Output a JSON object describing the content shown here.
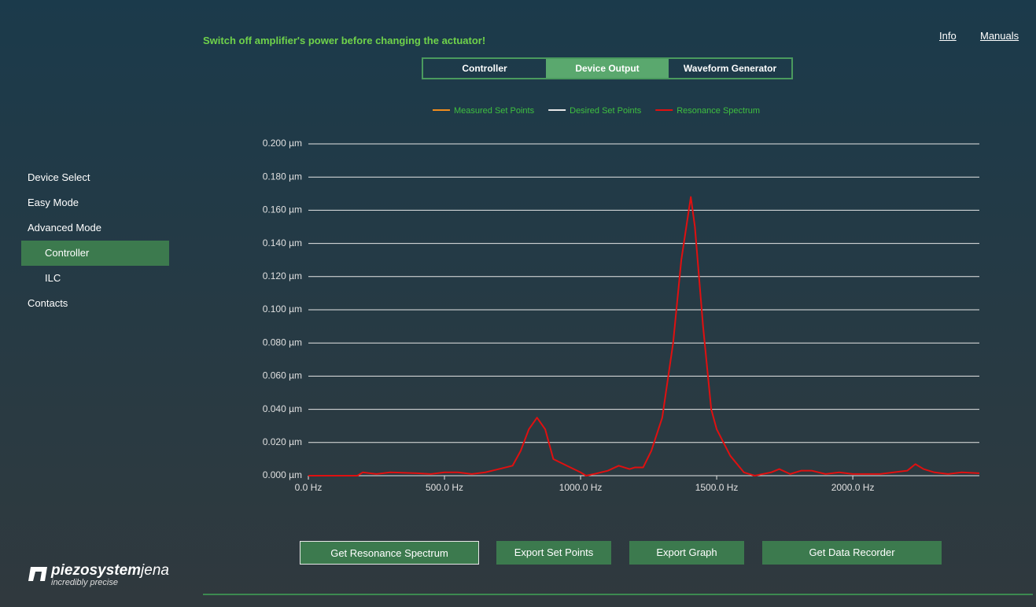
{
  "warning": "Switch off amplifier's power before changing the actuator!",
  "links": [
    "Info",
    "Manuals"
  ],
  "tabs": [
    "Controller",
    "Device Output",
    "Waveform Generator"
  ],
  "nav": [
    "Device Select",
    "Easy Mode",
    "Advanced Mode",
    "Controller",
    "ILC",
    "Contacts"
  ],
  "buttons": [
    "Get Resonance Spectrum",
    "Export Set Points",
    "Export Graph",
    "Get Data Recorder"
  ],
  "logo": {
    "name": "piezosystem",
    "suffix": "jena",
    "tagline": "incredibly precise"
  },
  "chart_data": {
    "type": "line",
    "x": [
      0,
      100,
      180,
      200,
      250,
      300,
      400,
      450,
      500,
      550,
      600,
      650,
      700,
      750,
      780,
      810,
      840,
      870,
      900,
      950,
      1000,
      1020,
      1050,
      1100,
      1140,
      1180,
      1200,
      1230,
      1260,
      1300,
      1340,
      1370,
      1405,
      1420,
      1450,
      1480,
      1500,
      1550,
      1600,
      1640,
      1700,
      1730,
      1770,
      1810,
      1850,
      1900,
      1950,
      2000,
      2100,
      2150,
      2200,
      2230,
      2260,
      2300,
      2350,
      2400,
      2465
    ],
    "series": [
      {
        "name": "Measured Set Points",
        "color": "#f08c1e"
      },
      {
        "name": "Desired Set Points",
        "color": "#e8e8e8"
      },
      {
        "name": "Resonance Spectrum",
        "color": "#e01010",
        "values": [
          0,
          0,
          0,
          0.002,
          0.001,
          0.002,
          0.0015,
          0.001,
          0.002,
          0.002,
          0.001,
          0.002,
          0.004,
          0.006,
          0.015,
          0.028,
          0.035,
          0.028,
          0.01,
          0.006,
          0.002,
          0,
          0.001,
          0.003,
          0.006,
          0.004,
          0.005,
          0.005,
          0.015,
          0.035,
          0.08,
          0.13,
          0.168,
          0.15,
          0.09,
          0.04,
          0.028,
          0.012,
          0.002,
          0,
          0.002,
          0.004,
          0.001,
          0.003,
          0.003,
          0.001,
          0.002,
          0.001,
          0.001,
          0.002,
          0.003,
          0.007,
          0.004,
          0.002,
          0.001,
          0.002,
          0.0015
        ]
      }
    ],
    "xlim": [
      0,
      2465
    ],
    "ylim": [
      0,
      0.2
    ],
    "xticks": [
      {
        "value": 0,
        "label": "0.0 Hz"
      },
      {
        "value": 500,
        "label": "500.0 Hz"
      },
      {
        "value": 1000,
        "label": "1000.0 Hz"
      },
      {
        "value": 1500,
        "label": "1500.0 Hz"
      },
      {
        "value": 2000,
        "label": "2000.0 Hz"
      }
    ],
    "yticks": [
      {
        "value": 0,
        "label": "0.000 µm"
      },
      {
        "value": 0.02,
        "label": "0.020 µm"
      },
      {
        "value": 0.04,
        "label": "0.040 µm"
      },
      {
        "value": 0.06,
        "label": "0.060 µm"
      },
      {
        "value": 0.08,
        "label": "0.080 µm"
      },
      {
        "value": 0.1,
        "label": "0.100 µm"
      },
      {
        "value": 0.12,
        "label": "0.120 µm"
      },
      {
        "value": 0.14,
        "label": "0.140 µm"
      },
      {
        "value": 0.16,
        "label": "0.160 µm"
      },
      {
        "value": 0.18,
        "label": "0.180 µm"
      },
      {
        "value": 0.2,
        "label": "0.200 µm"
      }
    ],
    "grid": true,
    "legend": "top"
  }
}
